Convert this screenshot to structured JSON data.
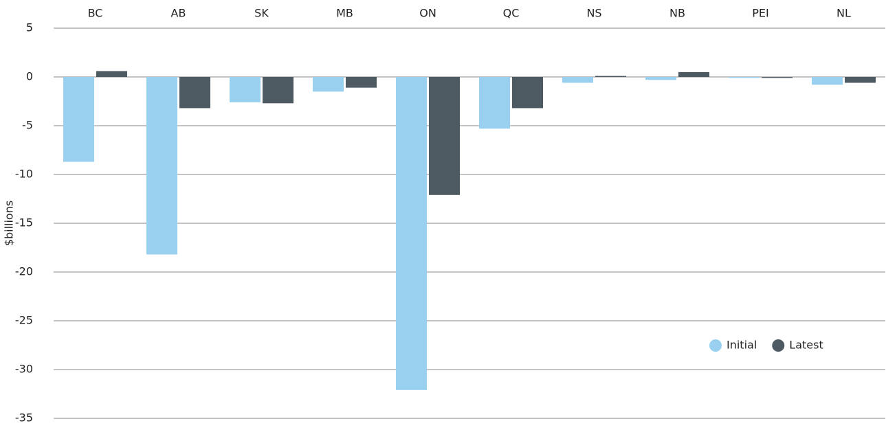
{
  "chart_data": {
    "type": "bar",
    "y_label": "$billions",
    "categories": [
      "BC",
      "AB",
      "SK",
      "MB",
      "ON",
      "QC",
      "NS",
      "NB",
      "PEI",
      "NL"
    ],
    "series": [
      {
        "name": "Initial",
        "color": "#99cfef",
        "values": [
          -8.7,
          -18.2,
          -2.6,
          -1.5,
          -32.1,
          -5.3,
          -0.6,
          -0.3,
          -0.1,
          -0.8
        ]
      },
      {
        "name": "Latest",
        "color": "#4e5a62",
        "values": [
          0.6,
          -3.2,
          -2.7,
          -1.1,
          -12.1,
          -3.2,
          0.1,
          0.5,
          -0.1,
          -0.6
        ]
      }
    ],
    "ylim": [
      -35,
      5
    ],
    "yticks": [
      5,
      0,
      -5,
      -10,
      -15,
      -20,
      -25,
      -30,
      -35
    ],
    "grid": true,
    "legend": "lower right"
  }
}
